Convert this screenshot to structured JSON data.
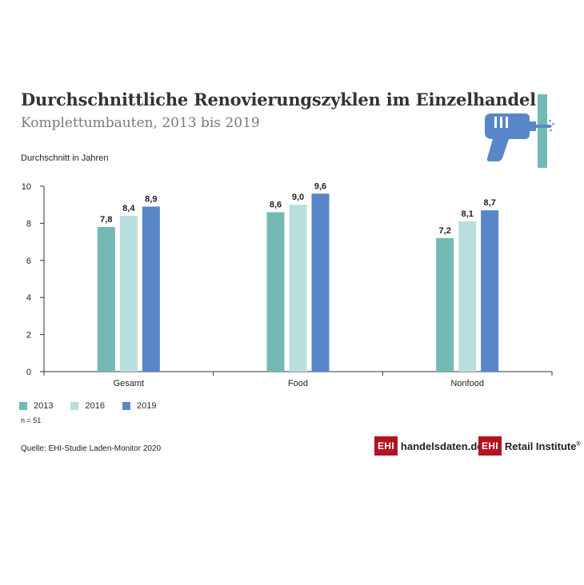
{
  "header": {
    "title": "Durchschnittliche Renovierungszyklen im Einzelhandel",
    "subtitle": "Komplettumbauten, 2013 bis 2019"
  },
  "chart_data": {
    "type": "bar",
    "ylabel": "Durchschnitt in Jahren",
    "ylim": [
      0,
      10
    ],
    "yticks": [
      0,
      2,
      4,
      6,
      8,
      10
    ],
    "categories": [
      "Gesamt",
      "Food",
      "Nonfood"
    ],
    "series": [
      {
        "name": "2013",
        "values": [
          7.8,
          8.6,
          7.2
        ],
        "labels": [
          "7,8",
          "8,6",
          "7,2"
        ],
        "color": "#75b9b6"
      },
      {
        "name": "2016",
        "values": [
          8.4,
          9.0,
          8.1
        ],
        "labels": [
          "8,4",
          "9,0",
          "8,1"
        ],
        "color": "#b9dede"
      },
      {
        "name": "2019",
        "values": [
          8.9,
          9.6,
          8.7
        ],
        "labels": [
          "8,9",
          "9,6",
          "8,7"
        ],
        "color": "#5887c9"
      }
    ],
    "grid": false,
    "legend": "bottom-left"
  },
  "footer": {
    "note": "n = 51",
    "source": "Quelle: EHI-Studie Laden-Monitor 2020"
  },
  "logos": {
    "handelsdaten_box": "EHI",
    "handelsdaten_text": "handelsdaten.de",
    "retail_box": "EHI",
    "retail_text": "Retail Institute",
    "retail_mark": "®"
  },
  "icons": {
    "drill": "drill-icon"
  },
  "colors": {
    "brand_red": "#b3121f",
    "icon_blue": "#5887c9",
    "icon_teal": "#75b9b6"
  }
}
